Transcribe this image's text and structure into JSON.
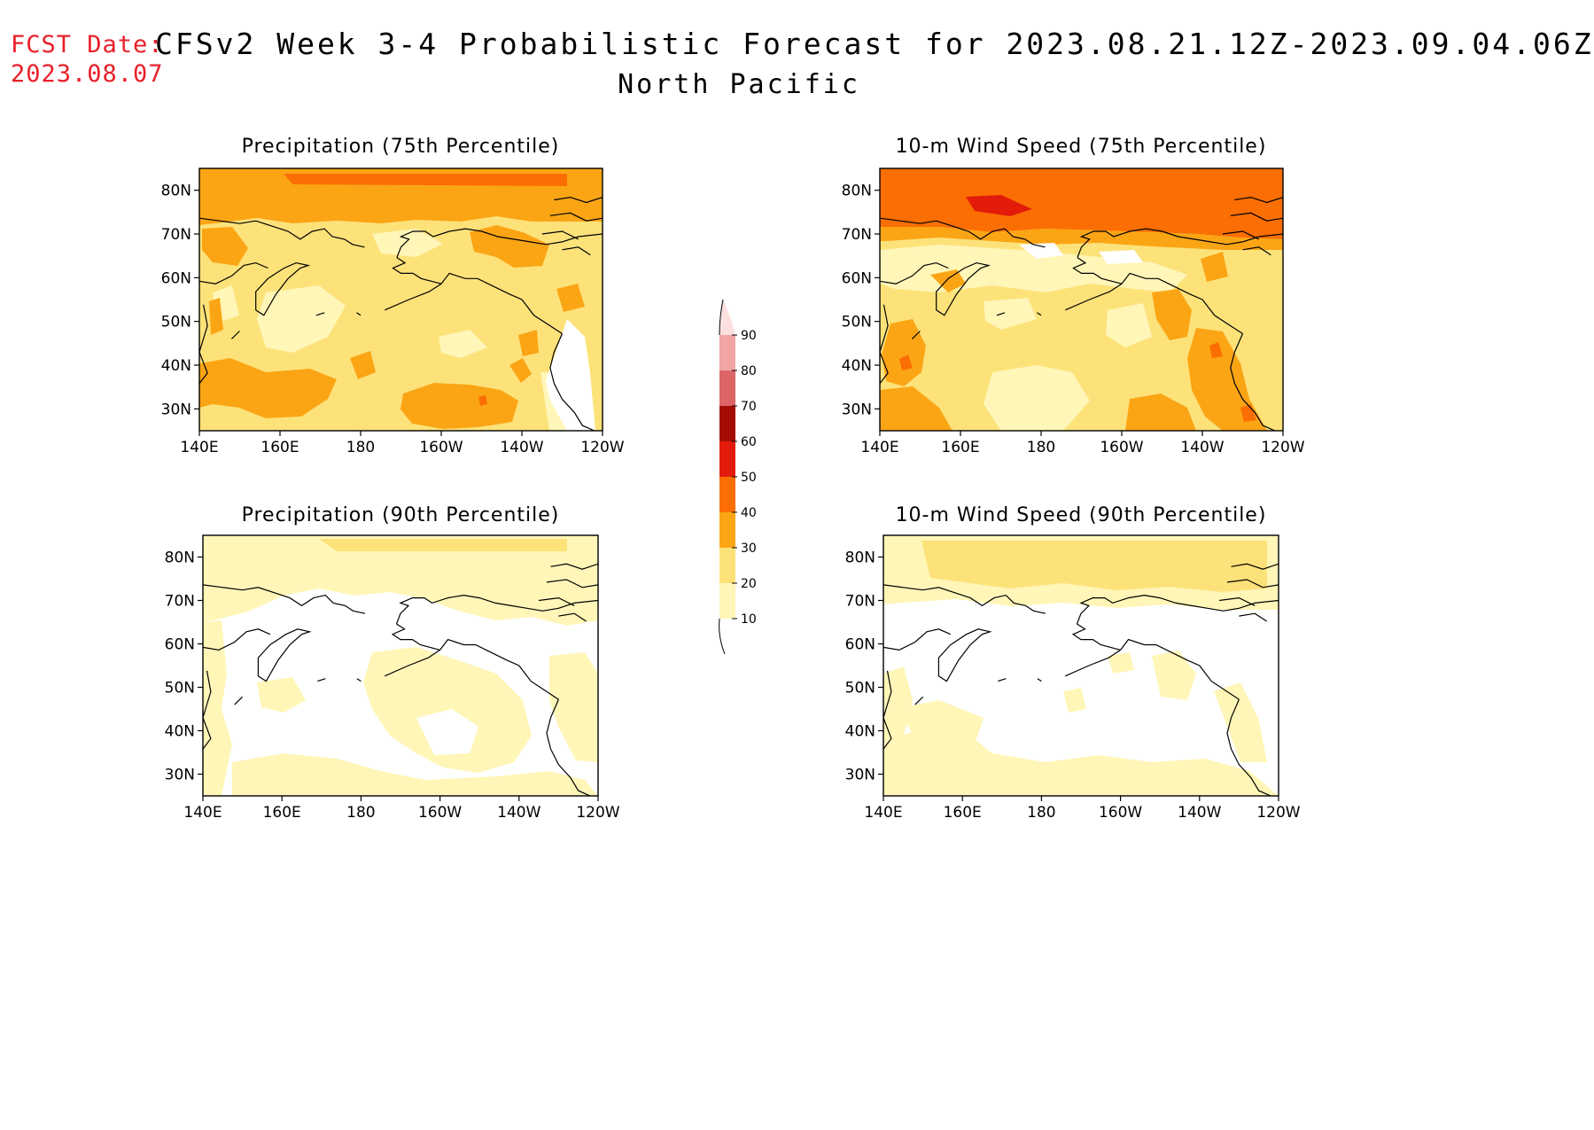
{
  "header": {
    "fcst_label": "FCST Date:",
    "fcst_date": "2023.08.07",
    "title": "CFSv2 Week 3-4 Probabilistic Forecast for 2023.08.21.12Z-2023.09.04.06Z",
    "region": "North Pacific"
  },
  "colors": {
    "lvl10": "#fff6b8",
    "lvl20": "#fde27a",
    "lvl30": "#fba515",
    "lvl40": "#fb6e03",
    "lvl50": "#e31b0b",
    "lvl60": "#a50c06",
    "lvl70": "#dd6566",
    "lvl80": "#f2a5a5",
    "lvl90": "#fde1e1",
    "coast": "#000000"
  },
  "colorbar": {
    "labels": [
      "10",
      "20",
      "30",
      "40",
      "50",
      "60",
      "70",
      "80",
      "90"
    ]
  },
  "axes": {
    "lat_labels": [
      "30N",
      "40N",
      "50N",
      "60N",
      "70N",
      "80N"
    ],
    "lon_labels": [
      "140E",
      "160E",
      "180",
      "160W",
      "140W",
      "120W"
    ]
  },
  "panels": [
    {
      "id": "precip75",
      "title": "Precipitation (75th Percentile)",
      "base_level": "lvl20"
    },
    {
      "id": "wind75",
      "title": "10-m Wind Speed (75th Percentile)",
      "base_level": "lvl10"
    },
    {
      "id": "precip90",
      "title": "Precipitation (90th Percentile)",
      "base_level": "none"
    },
    {
      "id": "wind90",
      "title": "10-m Wind Speed (90th Percentile)",
      "base_level": "none"
    }
  ]
}
